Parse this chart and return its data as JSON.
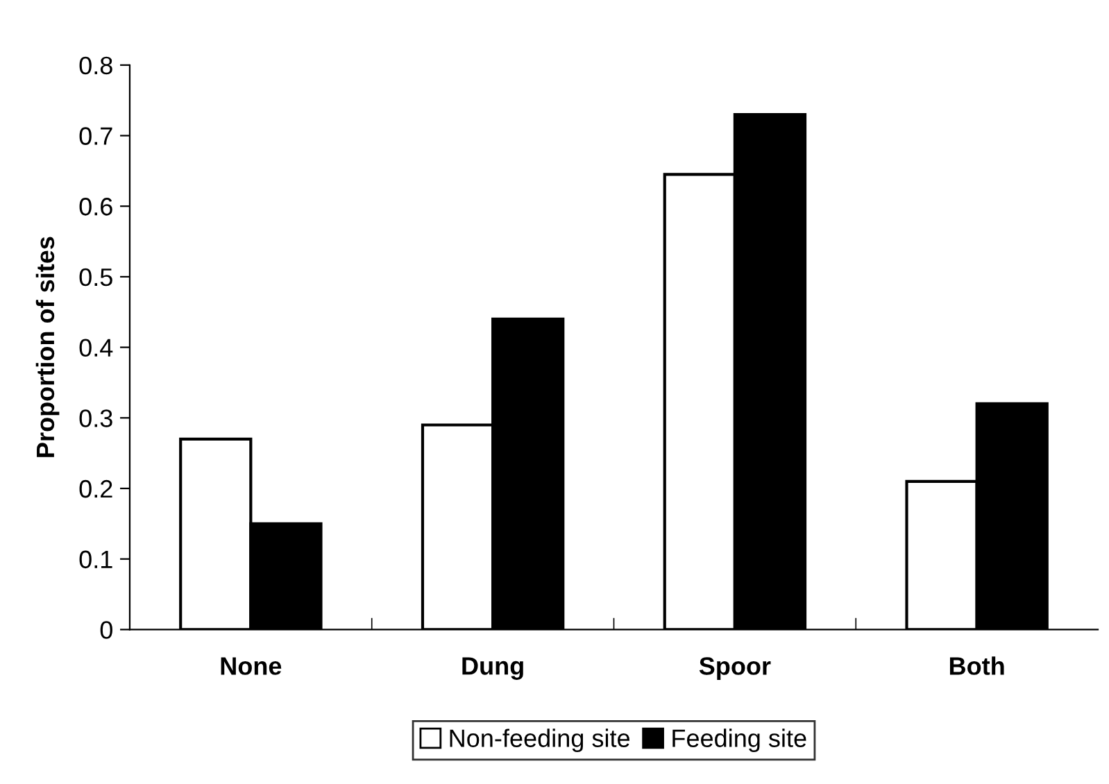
{
  "chart_data": {
    "type": "bar",
    "ylabel": "Proportion of sites",
    "categories": [
      "None",
      "Dung",
      "Spoor",
      "Both"
    ],
    "series": [
      {
        "name": "Non-feeding site",
        "color": "#ffffff",
        "values": [
          0.27,
          0.29,
          0.645,
          0.21
        ]
      },
      {
        "name": "Feeding site",
        "color": "#000000",
        "values": [
          0.15,
          0.44,
          0.73,
          0.32
        ]
      }
    ],
    "ylim": [
      0,
      0.8
    ],
    "yticks": [
      0,
      0.1,
      0.2,
      0.3,
      0.4,
      0.5,
      0.6,
      0.7,
      0.8
    ],
    "grid": false,
    "legend": "bottom"
  }
}
